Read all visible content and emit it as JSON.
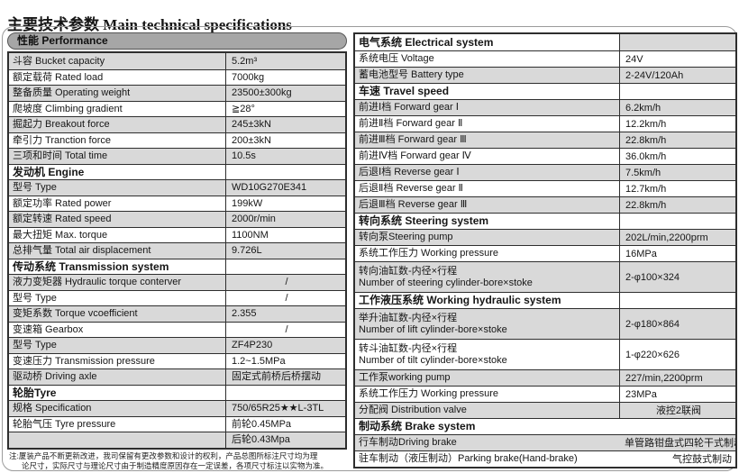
{
  "title": {
    "zh": "主要技术参数",
    "en": " Main technical specifications"
  },
  "colors": {
    "row_shade": "#d9d9d9",
    "pill_bg": "#a6a6a6",
    "table_border": "#2e2e2e"
  },
  "left_panel": {
    "pill": "性能 Performance",
    "rows": [
      {
        "t": "r",
        "label": "斗容 Bucket capacity",
        "value": "5.2m³",
        "shade": 1
      },
      {
        "t": "r",
        "label": "额定载荷 Rated load",
        "value": "7000kg"
      },
      {
        "t": "r",
        "label": "整备质量 Operating weight",
        "value": "23500±300kg",
        "shade": 1
      },
      {
        "t": "r",
        "label": "爬坡度 Climbing gradient",
        "value": "≧28°"
      },
      {
        "t": "r",
        "label": "掘起力 Breakout force",
        "value": "245±3kN",
        "shade": 1
      },
      {
        "t": "r",
        "label": "牵引力 Tranction force",
        "value": "200±3kN"
      },
      {
        "t": "r",
        "label": "三项和时间 Total time",
        "value": "10.5s",
        "shade": 1
      },
      {
        "t": "h",
        "label": "发动机 Engine"
      },
      {
        "t": "r",
        "label": "型号 Type",
        "value": "WD10G270E341",
        "shade": 1
      },
      {
        "t": "r",
        "label": "额定功率 Rated power",
        "value": "199kW"
      },
      {
        "t": "r",
        "label": "额定转速 Rated speed",
        "value": "2000r/min",
        "shade": 1
      },
      {
        "t": "r",
        "label": "最大扭矩 Max. torque",
        "value": "1100NM"
      },
      {
        "t": "r",
        "label": "总排气量 Total air displacement",
        "value": "9.726L",
        "shade": 1
      },
      {
        "t": "h",
        "label": "传动系统 Transmission system"
      },
      {
        "t": "r",
        "label": "液力变矩器 Hydraulic torque conterver",
        "value": "/",
        "shade": 1,
        "align": "center"
      },
      {
        "t": "r",
        "label": "型号 Type",
        "value": "/",
        "align": "center"
      },
      {
        "t": "r",
        "label": "变矩系数 Torque vcoefficient",
        "value": "2.355",
        "shade": 1
      },
      {
        "t": "r",
        "label": "变速箱 Gearbox",
        "value": "/",
        "align": "center"
      },
      {
        "t": "r",
        "label": "型号 Type",
        "value": "ZF4P230",
        "shade": 1
      },
      {
        "t": "r",
        "label": "变速压力 Transmission pressure",
        "value": "1.2~1.5MPa"
      },
      {
        "t": "r",
        "label": "驱动桥 Driving axle",
        "value": "固定式前桥后桥摆动",
        "shade": 1
      },
      {
        "t": "h",
        "label": "轮胎Tyre"
      },
      {
        "t": "r",
        "label": "规格 Specification",
        "value": "750/65R25★★L-3TL",
        "shade": 1
      },
      {
        "t": "r",
        "label": "轮胎气压 Tyre pressure",
        "value": "前轮0.45MPa"
      },
      {
        "t": "r",
        "label": "",
        "value": "后轮0.43Mpa",
        "shade": 1
      }
    ]
  },
  "right_panel": {
    "rows": [
      {
        "t": "h",
        "label": "电气系统 Electrical system",
        "vshade": 1
      },
      {
        "t": "r",
        "label": "系统电压 Voltage",
        "value": "24V"
      },
      {
        "t": "r",
        "label": "蓄电池型号 Battery type",
        "value": "2-24V/120Ah",
        "shade": 1
      },
      {
        "t": "h",
        "label": "车速 Travel speed"
      },
      {
        "t": "r",
        "label": "前进Ⅰ档 Forward gear Ⅰ",
        "value": "6.2km/h",
        "shade": 1
      },
      {
        "t": "r",
        "label": "前进Ⅱ档 Forward gear Ⅱ",
        "value": "12.2km/h"
      },
      {
        "t": "r",
        "label": "前进Ⅲ档 Forward gear Ⅲ",
        "value": "22.8km/h",
        "shade": 1
      },
      {
        "t": "r",
        "label": "前进Ⅳ档 Forward gear Ⅳ",
        "value": "36.0km/h"
      },
      {
        "t": "r",
        "label": "后退Ⅰ档 Reverse gear Ⅰ",
        "value": "7.5km/h",
        "shade": 1
      },
      {
        "t": "r",
        "label": "后退Ⅱ档 Reverse gear Ⅱ",
        "value": "12.7km/h"
      },
      {
        "t": "r",
        "label": "后退Ⅲ档 Reverse gear Ⅲ",
        "value": "22.8km/h",
        "shade": 1
      },
      {
        "t": "h",
        "label": "转向系统 Steering system"
      },
      {
        "t": "r",
        "label": "转向泵Steering pump",
        "value": "202L/min,2200prm",
        "shade": 1
      },
      {
        "t": "r",
        "label": "系统工作压力 Working pressure",
        "value": "16MPa"
      },
      {
        "t": "r",
        "label": "转向油缸数-内径×行程",
        "label2": "Number of steering cylinder-bore×stoke",
        "value": "2-φ100×324",
        "shade": 1
      },
      {
        "t": "h",
        "label": "工作液压系统 Working hydraulic system"
      },
      {
        "t": "r",
        "label": "举升油缸数-内径×行程",
        "label2": "Number of lift cylinder-bore×stoke",
        "value": "2-φ180×864",
        "shade": 1
      },
      {
        "t": "r",
        "label": "转斗油缸数-内径×行程",
        "label2": "Number of tilt cylinder-bore×stoke",
        "value": "1-φ220×626"
      },
      {
        "t": "r",
        "label": "工作泵working pump",
        "value": "227/min,2200prm",
        "shade": 1
      },
      {
        "t": "r",
        "label": "系统工作压力 Working pressure",
        "value": "23MPa"
      },
      {
        "t": "r",
        "label": "分配阀 Distribution valve",
        "value": "液控2联阀",
        "shade": 1,
        "align": "center"
      },
      {
        "t": "h",
        "label": "制动系统 Brake system",
        "span": 1
      },
      {
        "t": "r",
        "label": "行车制动Driving brake",
        "value": "单管路钳盘式四轮干式制动",
        "shade": 1,
        "nodiv": 1
      },
      {
        "t": "r",
        "label": "驻车制动（液压制动）Parking brake(Hand-brake)",
        "value": "气控鼓式制动",
        "nodiv": 1
      }
    ]
  },
  "footnote": {
    "line1": "注:厦装产品不断更新改进，我司保留有更改参数和设计的权利，产品总图所标注尺寸均为理",
    "line2": "论尺寸，实际尺寸与理论尺寸由于制造精度原因存在一定误差，各项尺寸标注以实物为准。"
  }
}
